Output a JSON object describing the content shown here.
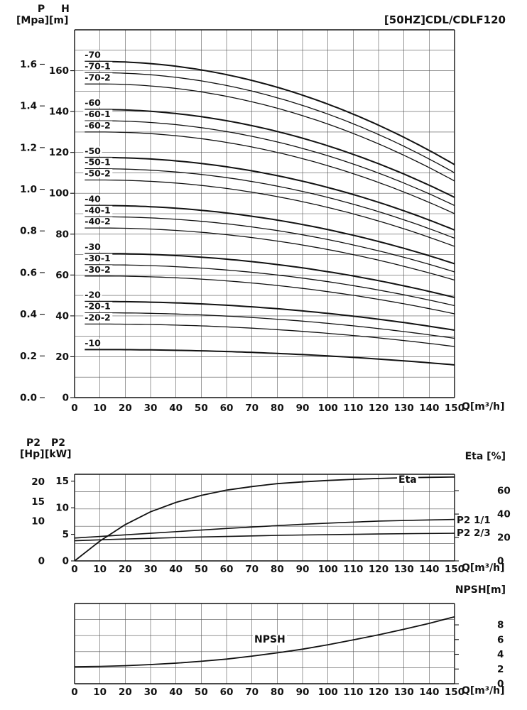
{
  "title": "[50HZ]CDL/CDLF120",
  "axis_headers": {
    "p": "P",
    "h": "H",
    "p_unit": "[Mpa]",
    "h_unit": "[m]",
    "p2_hp": "P2",
    "p2_kw": "P2",
    "hp_unit": "[Hp]",
    "kw_unit": "[kW]",
    "eta_axis": "Eta [%]",
    "npsh_axis": "NPSH[m]",
    "q_axis": "Q[m³/h]"
  },
  "annotations": {
    "eta": "Eta",
    "p2_full": "P2 1/1",
    "p2_two_thirds": "P2 2/3",
    "npsh": "NPSH"
  },
  "chart_data": [
    {
      "id": "head-capacity",
      "type": "line",
      "title": "[50HZ]CDL/CDLF120",
      "xlabel": "Q[m³/h]",
      "xlim": [
        0,
        150
      ],
      "x_ticks": [
        0,
        10,
        20,
        30,
        40,
        50,
        60,
        70,
        80,
        90,
        100,
        110,
        120,
        130,
        140,
        150
      ],
      "y_left_pressure": {
        "label": "P [Mpa]",
        "ticks": [
          "0.0",
          "0.2",
          "0.4",
          "0.6",
          "0.8",
          "1.0",
          "1.2",
          "1.4",
          "1.6"
        ],
        "m_per_mpa": 101.97
      },
      "y_left_head": {
        "label": "H [m]",
        "ticks": [
          0,
          20,
          40,
          60,
          80,
          100,
          120,
          140,
          160
        ],
        "ylim": [
          0,
          180
        ]
      },
      "grid": true,
      "series": [
        {
          "label": "-70",
          "q": [
            10,
            150
          ],
          "h": [
            164.5,
            114
          ]
        },
        {
          "label": "-70-1",
          "q": [
            10,
            150
          ],
          "h": [
            159,
            110
          ]
        },
        {
          "label": "-70-2",
          "q": [
            10,
            150
          ],
          "h": [
            153.5,
            106
          ]
        },
        {
          "label": "-60",
          "q": [
            10,
            150
          ],
          "h": [
            141,
            98
          ]
        },
        {
          "label": "-60-1",
          "q": [
            10,
            150
          ],
          "h": [
            135.5,
            94
          ]
        },
        {
          "label": "-60-2",
          "q": [
            10,
            150
          ],
          "h": [
            130,
            90
          ]
        },
        {
          "label": "-50",
          "q": [
            10,
            150
          ],
          "h": [
            117.5,
            82
          ]
        },
        {
          "label": "-50-1",
          "q": [
            10,
            150
          ],
          "h": [
            112,
            78
          ]
        },
        {
          "label": "-50-2",
          "q": [
            10,
            150
          ],
          "h": [
            106.5,
            74
          ]
        },
        {
          "label": "-40",
          "q": [
            10,
            150
          ],
          "h": [
            94,
            65.5
          ]
        },
        {
          "label": "-40-1",
          "q": [
            10,
            150
          ],
          "h": [
            88.5,
            61.5
          ]
        },
        {
          "label": "-40-2",
          "q": [
            10,
            150
          ],
          "h": [
            83,
            57.5
          ]
        },
        {
          "label": "-30",
          "q": [
            10,
            150
          ],
          "h": [
            70.5,
            49
          ]
        },
        {
          "label": "-30-1",
          "q": [
            10,
            150
          ],
          "h": [
            65,
            45
          ]
        },
        {
          "label": "-30-2",
          "q": [
            10,
            150
          ],
          "h": [
            59.5,
            41
          ]
        },
        {
          "label": "-20",
          "q": [
            10,
            150
          ],
          "h": [
            47,
            33
          ]
        },
        {
          "label": "-20-1",
          "q": [
            10,
            150
          ],
          "h": [
            41.5,
            29
          ]
        },
        {
          "label": "-20-2",
          "q": [
            10,
            150
          ],
          "h": [
            36,
            25
          ]
        },
        {
          "label": "-10",
          "q": [
            10,
            150
          ],
          "h": [
            23.5,
            16
          ]
        }
      ]
    },
    {
      "id": "power-efficiency",
      "type": "line",
      "xlabel": "Q[m³/h]",
      "x_ticks": [
        0,
        10,
        20,
        30,
        40,
        50,
        60,
        70,
        80,
        90,
        100,
        110,
        120,
        130,
        140,
        150
      ],
      "y_left": {
        "label": "P2 [Hp]/[kW]",
        "hp_ticks": [
          0,
          10,
          15,
          20
        ],
        "kw_ticks": [
          0,
          5,
          10,
          15
        ],
        "kw_max": 16.3
      },
      "y_right": {
        "label": "Eta [%]",
        "ticks": [
          0,
          20,
          40,
          60
        ],
        "max": 74
      },
      "grid": true,
      "series": [
        {
          "label": "Eta",
          "axis": "eta",
          "x": [
            0,
            10,
            20,
            30,
            40,
            50,
            60,
            70,
            80,
            90,
            100,
            110,
            120,
            130,
            140,
            150
          ],
          "y": [
            0,
            17,
            31,
            42,
            50,
            56,
            60.5,
            63.5,
            66,
            67.5,
            68.7,
            69.7,
            70.4,
            71,
            71.4,
            71.7
          ]
        },
        {
          "label": "P2 1/1",
          "axis": "kw",
          "x": [
            0,
            15,
            30,
            45,
            60,
            75,
            90,
            105,
            120,
            135,
            150
          ],
          "y": [
            4.3,
            4.75,
            5.2,
            5.65,
            6.1,
            6.5,
            6.9,
            7.2,
            7.5,
            7.65,
            7.8
          ]
        },
        {
          "label": "P2 2/3",
          "axis": "kw",
          "x": [
            0,
            15,
            30,
            45,
            60,
            75,
            90,
            105,
            120,
            135,
            150
          ],
          "y": [
            3.8,
            4.05,
            4.25,
            4.45,
            4.6,
            4.75,
            4.87,
            4.97,
            5.07,
            5.15,
            5.2
          ]
        }
      ]
    },
    {
      "id": "npsh",
      "type": "line",
      "xlabel": "Q[m³/h]",
      "x_ticks": [
        0,
        10,
        20,
        30,
        40,
        50,
        60,
        70,
        80,
        90,
        100,
        110,
        120,
        130,
        140,
        150
      ],
      "y_right": {
        "label": "NPSH[m]",
        "ticks": [
          0,
          2,
          4,
          6,
          8
        ],
        "max": 10.9
      },
      "grid": true,
      "series": [
        {
          "label": "NPSH",
          "axis": "npsh",
          "x": [
            0,
            10,
            20,
            30,
            40,
            50,
            60,
            70,
            80,
            90,
            100,
            110,
            120,
            130,
            140,
            150
          ],
          "y": [
            2.3,
            2.35,
            2.45,
            2.6,
            2.8,
            3.05,
            3.35,
            3.75,
            4.2,
            4.7,
            5.3,
            5.95,
            6.65,
            7.4,
            8.2,
            9.1
          ]
        }
      ]
    }
  ]
}
